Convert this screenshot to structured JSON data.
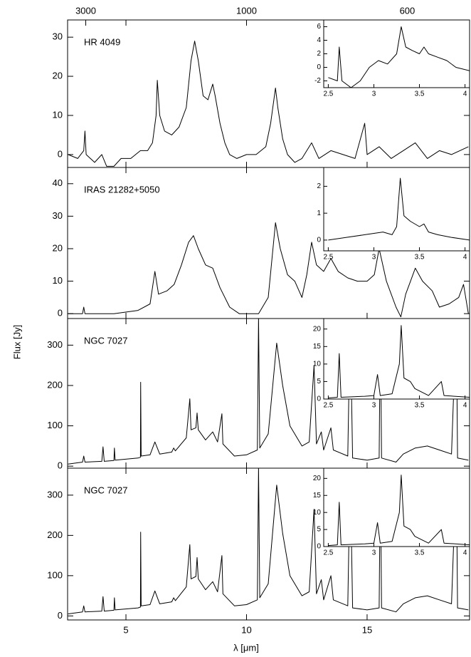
{
  "chart_data": {
    "type": "line",
    "color": "#000000",
    "xlabel": "λ [μm]",
    "ylabel": "Flux [Jy]",
    "xlim": [
      2.58,
      19.25
    ],
    "xticks": [
      5,
      10,
      15
    ],
    "x2ticks": [
      3000,
      1000,
      600
    ],
    "panels": [
      {
        "label": "HR 4049",
        "ylim": [
          -3.3,
          34.4
        ],
        "yticks": [
          0,
          10,
          20,
          30
        ],
        "x": [
          2.6,
          3.0,
          3.25,
          3.3,
          3.35,
          3.7,
          4.0,
          4.2,
          4.5,
          4.8,
          5.2,
          5.6,
          5.9,
          6.1,
          6.25,
          6.3,
          6.4,
          6.6,
          6.9,
          7.2,
          7.5,
          7.7,
          7.85,
          8.0,
          8.2,
          8.4,
          8.6,
          8.7,
          8.9,
          9.1,
          9.3,
          9.6,
          10.0,
          10.4,
          10.8,
          11.0,
          11.2,
          11.3,
          11.5,
          11.7,
          12.0,
          12.3,
          12.7,
          13.0,
          13.5,
          14.0,
          14.5,
          14.9,
          15.0,
          15.5,
          16.0,
          16.5,
          17.0,
          17.5,
          18.0,
          18.5,
          19.2
        ],
        "values": [
          0,
          -1,
          1,
          6,
          0,
          -2,
          0,
          -3,
          -3,
          -1,
          -1,
          1,
          1,
          3,
          10,
          19,
          10,
          6,
          5,
          7,
          12,
          24,
          29,
          24,
          15,
          14,
          18,
          15,
          8,
          3,
          0,
          -1,
          0,
          0,
          2,
          8,
          17,
          12,
          4,
          0,
          -2,
          -1,
          3,
          -1,
          1,
          0,
          -1,
          8,
          0,
          2,
          -1,
          1,
          3,
          -1,
          1,
          0,
          2
        ],
        "inset": {
          "xlim": [
            2.45,
            4.05
          ],
          "xticks": [
            2.5,
            3,
            3.5,
            4
          ],
          "ylim": [
            -3,
            7
          ],
          "yticks": [
            -2,
            0,
            2,
            4,
            6
          ],
          "x": [
            2.5,
            2.6,
            2.62,
            2.65,
            2.75,
            2.85,
            2.95,
            3.05,
            3.15,
            3.25,
            3.3,
            3.35,
            3.42,
            3.5,
            3.55,
            3.6,
            3.7,
            3.8,
            3.9,
            4.05
          ],
          "values": [
            -1.5,
            -2,
            3,
            -2,
            -3,
            -2,
            0,
            1,
            0.5,
            2,
            6,
            3,
            2.5,
            2,
            3,
            2,
            1.5,
            1,
            0,
            -0.5
          ]
        }
      },
      {
        "label": "IRAS 21282+5050",
        "ylim": [
          -1.5,
          45
        ],
        "yticks": [
          0,
          10,
          20,
          30,
          40
        ],
        "x": [
          2.6,
          3.2,
          3.25,
          3.3,
          4.5,
          5.5,
          6.0,
          6.2,
          6.35,
          6.7,
          7.0,
          7.3,
          7.6,
          7.8,
          8.0,
          8.3,
          8.6,
          8.9,
          9.3,
          9.7,
          10.5,
          10.9,
          11.2,
          11.4,
          11.7,
          12.0,
          12.3,
          12.5,
          12.7,
          12.9,
          13.2,
          13.5,
          13.8,
          14.2,
          14.6,
          15.0,
          15.3,
          15.5,
          15.8,
          16.2,
          16.4,
          16.6,
          16.8,
          17.0,
          17.3,
          17.7,
          18.0,
          18.4,
          18.8,
          19.0,
          19.2
        ],
        "values": [
          0,
          0,
          2,
          0,
          0,
          1,
          3,
          13,
          6,
          7,
          9,
          15,
          22,
          24,
          20,
          15,
          14,
          8,
          2,
          0,
          0,
          5,
          28,
          20,
          12,
          10,
          5,
          12,
          22,
          15,
          13,
          17,
          13,
          11,
          10,
          10,
          12,
          20,
          10,
          2,
          -1,
          6,
          10,
          14,
          10,
          7,
          2,
          3,
          5,
          9,
          0
        ],
        "inset": {
          "xlim": [
            2.45,
            4.05
          ],
          "xticks": [
            2.5,
            3,
            3.5,
            4
          ],
          "ylim": [
            -0.4,
            2.7
          ],
          "yticks": [
            0,
            1,
            2
          ],
          "x": [
            2.5,
            2.7,
            2.9,
            3.1,
            3.2,
            3.25,
            3.29,
            3.33,
            3.4,
            3.5,
            3.55,
            3.6,
            3.7,
            3.85,
            4.05
          ],
          "values": [
            0,
            0.1,
            0.2,
            0.3,
            0.2,
            0.5,
            2.3,
            0.9,
            0.7,
            0.5,
            0.6,
            0.3,
            0.2,
            0.1,
            0
          ]
        }
      },
      {
        "label": "NGC 7027",
        "ylim": [
          -5,
          366
        ],
        "yticks": [
          0,
          100,
          200,
          300
        ],
        "x": [
          2.6,
          3.2,
          3.25,
          3.3,
          4.0,
          4.05,
          4.1,
          4.5,
          4.52,
          4.55,
          5.5,
          5.6,
          5.61,
          5.63,
          6.0,
          6.2,
          6.4,
          6.9,
          6.98,
          7.05,
          7.5,
          7.65,
          7.7,
          7.9,
          7.95,
          8.0,
          8.3,
          8.6,
          8.8,
          8.98,
          9.02,
          9.5,
          10.0,
          10.45,
          10.5,
          10.55,
          10.9,
          11.25,
          11.5,
          11.8,
          12.3,
          12.6,
          12.8,
          12.9,
          13.1,
          13.2,
          13.5,
          13.6,
          14.2,
          14.3,
          14.4,
          15.0,
          15.5,
          15.55,
          15.6,
          16.2,
          16.5,
          17.0,
          17.5,
          18.0,
          18.5,
          18.7,
          18.75,
          19.2
        ],
        "values": [
          5,
          10,
          25,
          10,
          12,
          48,
          12,
          14,
          45,
          15,
          20,
          22,
          208,
          25,
          28,
          60,
          30,
          35,
          45,
          38,
          70,
          167,
          90,
          95,
          132,
          90,
          65,
          85,
          60,
          130,
          55,
          25,
          28,
          40,
          370,
          45,
          80,
          305,
          200,
          100,
          50,
          60,
          250,
          55,
          85,
          40,
          95,
          40,
          25,
          370,
          20,
          15,
          20,
          370,
          20,
          10,
          30,
          45,
          50,
          40,
          30,
          370,
          20,
          15
        ],
        "inset": {
          "xlim": [
            2.45,
            4.05
          ],
          "xticks": [
            2.5,
            3,
            3.5,
            4
          ],
          "ylim": [
            0,
            23
          ],
          "yticks": [
            0,
            5,
            10,
            15,
            20
          ],
          "x": [
            2.5,
            2.6,
            2.62,
            2.64,
            2.9,
            3.0,
            3.04,
            3.07,
            3.2,
            3.28,
            3.3,
            3.33,
            3.4,
            3.45,
            3.6,
            3.74,
            3.77,
            4.05
          ],
          "values": [
            0.3,
            0.5,
            13,
            0.5,
            0.8,
            1,
            7,
            1,
            1.5,
            10,
            21,
            6,
            5,
            3,
            1,
            5,
            1,
            0.5
          ]
        }
      },
      {
        "label": "NGC 7027",
        "ylim": [
          -10,
          367
        ],
        "yticks": [
          0,
          100,
          200,
          300
        ],
        "x": [
          2.6,
          3.2,
          3.25,
          3.3,
          4.0,
          4.05,
          4.1,
          4.5,
          4.52,
          4.55,
          5.5,
          5.6,
          5.61,
          5.63,
          6.0,
          6.2,
          6.4,
          6.9,
          6.98,
          7.05,
          7.5,
          7.65,
          7.7,
          7.9,
          7.95,
          8.0,
          8.3,
          8.6,
          8.8,
          8.98,
          9.02,
          9.5,
          10.0,
          10.45,
          10.5,
          10.55,
          10.9,
          11.25,
          11.5,
          11.8,
          12.3,
          12.6,
          12.8,
          12.9,
          13.1,
          13.2,
          13.5,
          13.6,
          14.2,
          14.3,
          14.4,
          15.0,
          15.5,
          15.55,
          15.6,
          16.2,
          16.5,
          17.0,
          17.5,
          18.0,
          18.5,
          18.7,
          18.75,
          19.2
        ],
        "values": [
          5,
          10,
          25,
          10,
          12,
          48,
          12,
          14,
          45,
          15,
          20,
          22,
          208,
          25,
          28,
          62,
          30,
          35,
          45,
          38,
          72,
          177,
          92,
          98,
          145,
          92,
          65,
          85,
          60,
          150,
          55,
          25,
          28,
          40,
          370,
          45,
          80,
          325,
          205,
          100,
          50,
          60,
          265,
          55,
          90,
          40,
          100,
          40,
          25,
          370,
          20,
          15,
          20,
          370,
          20,
          10,
          30,
          45,
          50,
          40,
          30,
          370,
          20,
          15
        ],
        "inset": {
          "xlim": [
            2.45,
            4.05
          ],
          "xticks": [
            2.5,
            3,
            3.5,
            4
          ],
          "ylim": [
            0,
            23
          ],
          "yticks": [
            0,
            5,
            10,
            15,
            20
          ],
          "x": [
            2.5,
            2.6,
            2.62,
            2.64,
            2.9,
            3.0,
            3.04,
            3.07,
            3.2,
            3.28,
            3.3,
            3.33,
            3.4,
            3.45,
            3.6,
            3.74,
            3.77,
            4.05
          ],
          "values": [
            0.3,
            0.5,
            13,
            0.5,
            0.8,
            1,
            7,
            1,
            1.5,
            10,
            21,
            6,
            5,
            3,
            1,
            5,
            1,
            0.5
          ]
        }
      }
    ]
  }
}
